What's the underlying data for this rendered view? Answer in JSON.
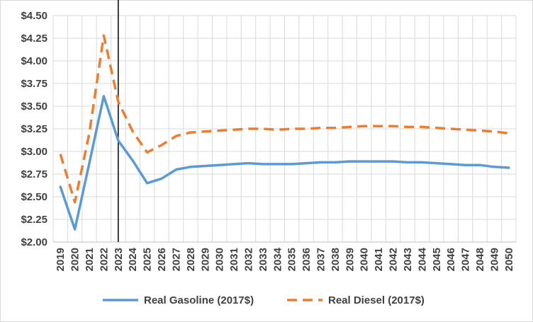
{
  "chart_data": {
    "type": "line",
    "title": "",
    "xlabel": "",
    "ylabel": "",
    "categories": [
      "2019",
      "2020",
      "2021",
      "2022",
      "2023",
      "2024",
      "2025",
      "2026",
      "2027",
      "2028",
      "2029",
      "2030",
      "2031",
      "2032",
      "2033",
      "2034",
      "2035",
      "2036",
      "2037",
      "2038",
      "2039",
      "2040",
      "2041",
      "2042",
      "2043",
      "2044",
      "2045",
      "2046",
      "2047",
      "2048",
      "2049",
      "2050"
    ],
    "ylim": [
      2.0,
      4.5
    ],
    "yticks": [
      "$2.00",
      "$2.25",
      "$2.50",
      "$2.75",
      "$3.00",
      "$3.25",
      "$3.50",
      "$3.75",
      "$4.00",
      "$4.25",
      "$4.50"
    ],
    "grid": true,
    "legend_position": "bottom",
    "vertical_marker_at": "2023",
    "series": [
      {
        "name": "Real Gasoline (2017$)",
        "style": "solid",
        "color": "#5b9bd5",
        "values": [
          2.61,
          2.14,
          2.87,
          3.61,
          3.12,
          2.9,
          2.65,
          2.7,
          2.8,
          2.83,
          2.84,
          2.85,
          2.86,
          2.87,
          2.86,
          2.86,
          2.86,
          2.87,
          2.88,
          2.88,
          2.89,
          2.89,
          2.89,
          2.89,
          2.88,
          2.88,
          2.87,
          2.86,
          2.85,
          2.85,
          2.83,
          2.82
        ]
      },
      {
        "name": "Real Diesel (2017$)",
        "style": "dashed",
        "color": "#ed7d31",
        "values": [
          2.97,
          2.44,
          3.2,
          4.28,
          3.55,
          3.22,
          2.99,
          3.07,
          3.17,
          3.21,
          3.22,
          3.23,
          3.24,
          3.25,
          3.25,
          3.24,
          3.25,
          3.25,
          3.26,
          3.26,
          3.27,
          3.28,
          3.28,
          3.28,
          3.27,
          3.27,
          3.26,
          3.25,
          3.24,
          3.23,
          3.22,
          3.2
        ]
      }
    ]
  }
}
